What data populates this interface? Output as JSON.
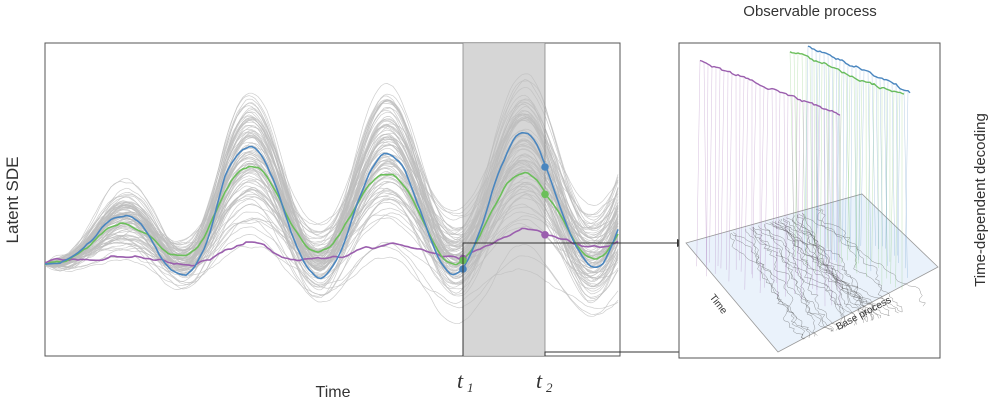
{
  "labels": {
    "y_axis": "Latent SDE",
    "x_axis": "Time",
    "t1": "t",
    "t1_sub": "1",
    "t2": "t",
    "t2_sub": "2",
    "panel_title": "Observable process",
    "side_label": "Time-dependent decoding",
    "panel_time_axis": "Time",
    "panel_base_axis": "Base process"
  },
  "colors": {
    "blue": "#4a86bf",
    "green": "#6bbf5a",
    "purple": "#9b5fae",
    "grey": "#bdbdbd",
    "shade": "#cfcfcf",
    "base_plane": "#eaf2fb"
  }
}
